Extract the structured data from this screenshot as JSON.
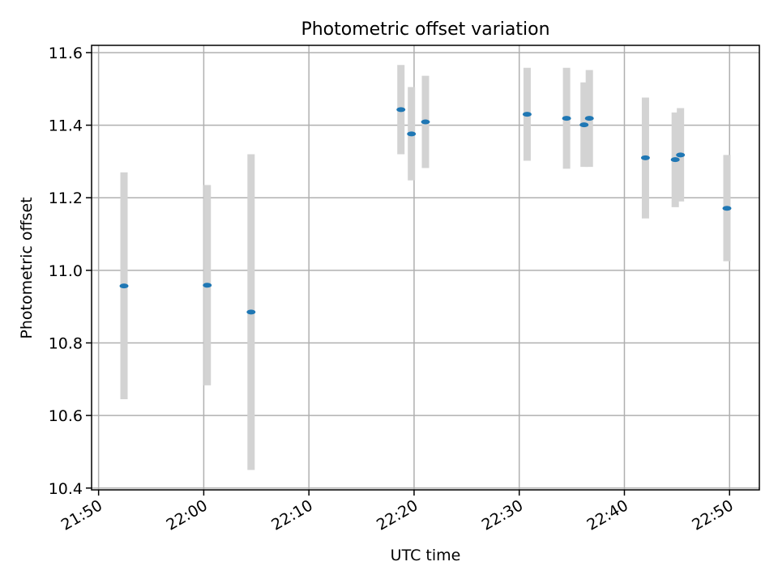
{
  "chart_data": {
    "type": "scatter",
    "title": "Photometric offset variation",
    "xlabel": "UTC time",
    "ylabel": "Photometric offset",
    "x_axis": {
      "kind": "time",
      "range": [
        "21:49:20",
        "22:52:50"
      ],
      "ticks": [
        "21:50",
        "22:00",
        "22:10",
        "22:20",
        "22:30",
        "22:40",
        "22:50"
      ]
    },
    "y_axis": {
      "range": [
        10.395,
        11.62
      ],
      "ticks": [
        10.4,
        10.6,
        10.8,
        11.0,
        11.2,
        11.4,
        11.6
      ],
      "tick_labels": [
        "10.4",
        "10.6",
        "10.8",
        "11.0",
        "11.2",
        "11.4",
        "11.6"
      ]
    },
    "grid": true,
    "series": [
      {
        "marker_color": "#1f77b4",
        "errorbar_color": "#d3d3d3",
        "points": [
          {
            "x": "21:52:25",
            "y": 10.957,
            "ylow": 10.645,
            "yhigh": 11.27
          },
          {
            "x": "22:00:20",
            "y": 10.959,
            "ylow": 10.683,
            "yhigh": 11.235
          },
          {
            "x": "22:04:30",
            "y": 10.885,
            "ylow": 10.45,
            "yhigh": 11.32
          },
          {
            "x": "22:18:45",
            "y": 11.443,
            "ylow": 11.32,
            "yhigh": 11.566
          },
          {
            "x": "22:19:45",
            "y": 11.376,
            "ylow": 11.248,
            "yhigh": 11.505
          },
          {
            "x": "22:21:05",
            "y": 11.409,
            "ylow": 11.282,
            "yhigh": 11.536
          },
          {
            "x": "22:30:45",
            "y": 11.43,
            "ylow": 11.302,
            "yhigh": 11.558
          },
          {
            "x": "22:34:30",
            "y": 11.419,
            "ylow": 11.28,
            "yhigh": 11.558
          },
          {
            "x": "22:36:10",
            "y": 11.401,
            "ylow": 11.285,
            "yhigh": 11.518
          },
          {
            "x": "22:36:40",
            "y": 11.419,
            "ylow": 11.285,
            "yhigh": 11.552
          },
          {
            "x": "22:42:00",
            "y": 11.31,
            "ylow": 11.143,
            "yhigh": 11.476
          },
          {
            "x": "22:44:50",
            "y": 11.305,
            "ylow": 11.174,
            "yhigh": 11.435
          },
          {
            "x": "22:45:20",
            "y": 11.318,
            "ylow": 11.19,
            "yhigh": 11.447
          },
          {
            "x": "22:49:45",
            "y": 11.171,
            "ylow": 11.025,
            "yhigh": 11.318
          }
        ]
      }
    ]
  }
}
